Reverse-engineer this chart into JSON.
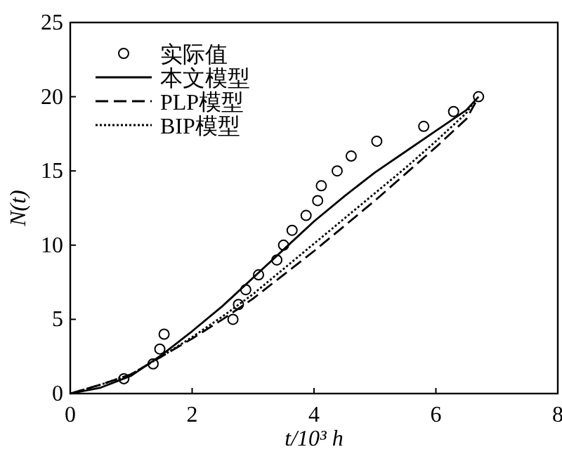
{
  "chart_data": {
    "type": "line",
    "xlabel": "t/10³ h",
    "ylabel": "N(t)",
    "xlim": [
      0,
      8
    ],
    "ylim": [
      0,
      25
    ],
    "xticks": [
      0,
      2,
      4,
      6,
      8
    ],
    "yticks": [
      0,
      5,
      10,
      15,
      20,
      25
    ],
    "grid": false,
    "legend": "top left",
    "series": [
      {
        "name": "实际值",
        "type": "scatter",
        "marker": "circle",
        "color": "#000000",
        "x": [
          0.88,
          1.36,
          1.47,
          1.54,
          2.67,
          2.76,
          2.88,
          3.09,
          3.39,
          3.5,
          3.64,
          3.87,
          4.06,
          4.12,
          4.38,
          4.61,
          5.03,
          5.8,
          6.29,
          6.7
        ],
        "values": [
          1,
          2,
          3,
          4,
          5,
          6,
          7,
          8,
          9,
          10,
          11,
          12,
          13,
          14,
          15,
          16,
          17,
          18,
          19,
          20
        ]
      },
      {
        "name": "本文模型",
        "line_style": "solid",
        "color": "#000000",
        "x": [
          0,
          0.5,
          1,
          1.5,
          2,
          2.5,
          3,
          3.5,
          4,
          4.5,
          5,
          5.5,
          6,
          6.5,
          6.7
        ],
        "values": [
          0,
          0.4,
          1.2,
          2.6,
          4.2,
          5.9,
          7.8,
          9.7,
          11.6,
          13.3,
          14.9,
          16.3,
          17.7,
          19.1,
          20
        ]
      },
      {
        "name": "PLP模型",
        "line_style": "dashed",
        "color": "#000000",
        "x": [
          0,
          0.5,
          1,
          1.5,
          2,
          2.5,
          3,
          3.5,
          4,
          4.5,
          5,
          5.5,
          6,
          6.5,
          6.65
        ],
        "values": [
          0,
          0.6,
          1.3,
          2.5,
          3.7,
          5.0,
          6.4,
          8.0,
          9.6,
          11.3,
          13.0,
          14.8,
          16.6,
          18.5,
          19.6
        ]
      },
      {
        "name": "BIP模型",
        "line_style": "dotted",
        "color": "#000000",
        "x": [
          0,
          0.5,
          1,
          1.5,
          2,
          2.5,
          3,
          3.5,
          4,
          4.5,
          5,
          5.5,
          6,
          6.5,
          6.65
        ],
        "values": [
          0,
          0.6,
          1.3,
          2.5,
          3.8,
          5.2,
          6.7,
          8.4,
          10.1,
          11.8,
          13.5,
          15.2,
          17.0,
          18.9,
          19.8
        ]
      }
    ]
  }
}
